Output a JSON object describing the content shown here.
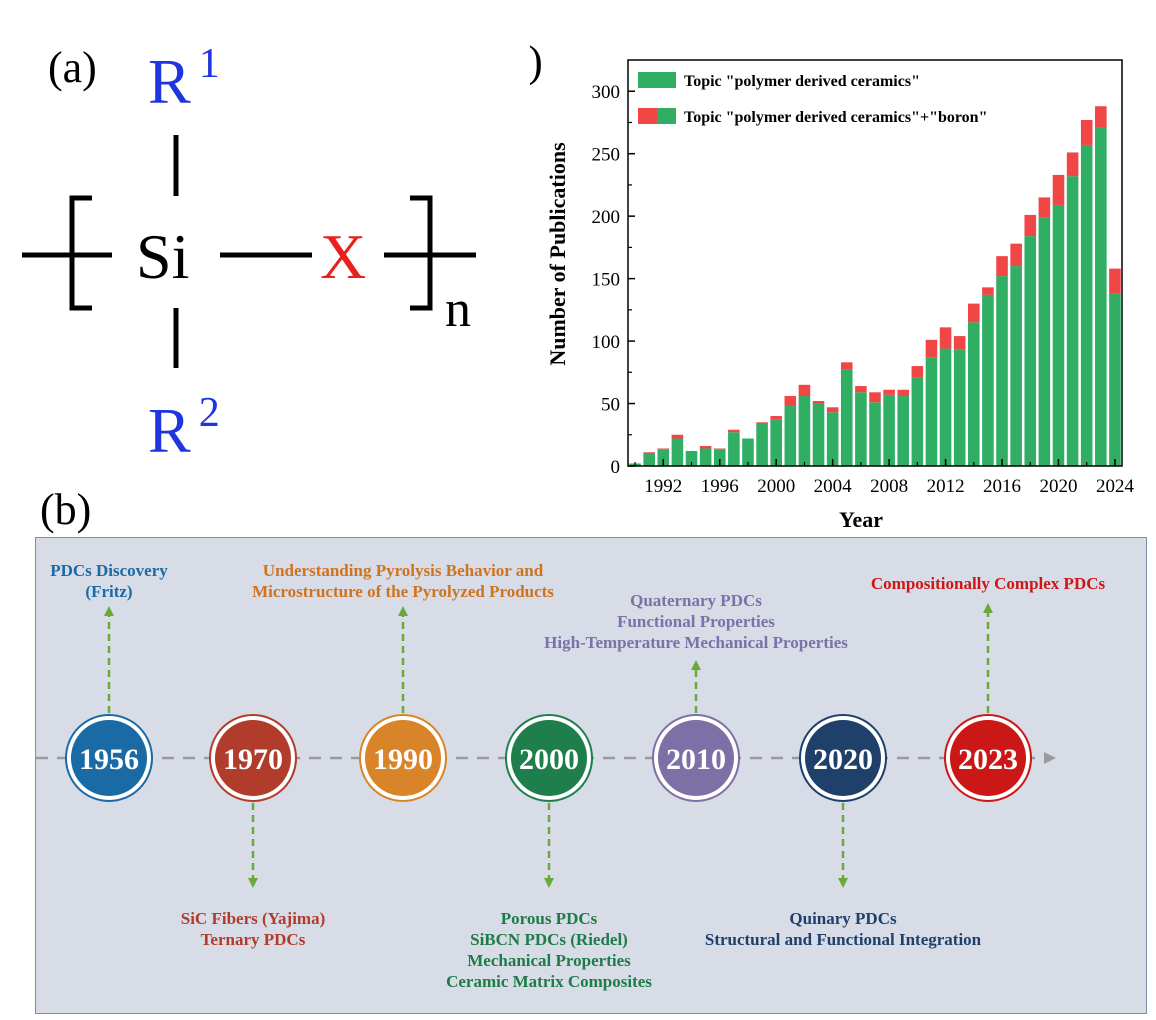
{
  "panel_a": {
    "label": "(a)",
    "r1_base": "R",
    "r1_sup": "1",
    "r2_base": "R",
    "r2_sup": "2",
    "si": "Si",
    "x": "X",
    "subscript": "n",
    "colors": {
      "r_group": "#1f35e0",
      "x_group": "#e8201e",
      "text": "#000000"
    }
  },
  "panel_b": {
    "label": "(b)",
    "milestones": [
      {
        "year": "1956",
        "color": "#1a6aa6",
        "text_color": "#1a6aa6",
        "direction": "up",
        "lines": [
          "PDCs Discovery",
          "(Fritz)"
        ]
      },
      {
        "year": "1970",
        "color": "#b23c2c",
        "text_color": "#b23c2c",
        "direction": "down",
        "lines": [
          "SiC Fibers (Yajima)",
          "Ternary PDCs"
        ]
      },
      {
        "year": "1990",
        "color": "#d98428",
        "text_color": "#d0731e",
        "direction": "up",
        "lines": [
          "Understanding Pyrolysis Behavior and",
          "Microstructure of the Pyrolyzed Products"
        ]
      },
      {
        "year": "2000",
        "color": "#1f7f4c",
        "text_color": "#1e7c48",
        "direction": "down",
        "lines": [
          "Porous PDCs",
          "SiBCN PDCs (Riedel)",
          "Mechanical Properties",
          "Ceramic Matrix Composites"
        ]
      },
      {
        "year": "2010",
        "color": "#7c70a6",
        "text_color": "#7a72a8",
        "direction": "up",
        "lines": [
          "Quaternary PDCs",
          "Functional Properties",
          "High-Temperature Mechanical Properties"
        ]
      },
      {
        "year": "2020",
        "color": "#1f406b",
        "text_color": "#1f406b",
        "direction": "down",
        "lines": [
          "Quinary PDCs",
          "Structural and Functional Integration"
        ]
      },
      {
        "year": "2023",
        "color": "#cc1717",
        "text_color": "#cc1717",
        "direction": "up",
        "lines": [
          "Compositionally Complex PDCs"
        ]
      }
    ],
    "colors": {
      "background": "#d7dce6",
      "arrow": "#6aaa3a",
      "axis": "#9a9a9a"
    }
  },
  "chart_data": {
    "type": "bar",
    "panel_label": "(c)",
    "stacked": true,
    "x": [
      1990,
      1991,
      1992,
      1993,
      1994,
      1995,
      1996,
      1997,
      1998,
      1999,
      2000,
      2001,
      2002,
      2003,
      2004,
      2005,
      2006,
      2007,
      2008,
      2009,
      2010,
      2011,
      2012,
      2013,
      2014,
      2015,
      2016,
      2017,
      2018,
      2019,
      2020,
      2021,
      2022,
      2023,
      2024
    ],
    "series": [
      {
        "name": "Topic \"polymer derived ceramics\"",
        "color": "#2fae64",
        "values": [
          2,
          10,
          13,
          22,
          12,
          14,
          13,
          27,
          22,
          34,
          37,
          48,
          56,
          50,
          43,
          77,
          59,
          51,
          57,
          56,
          71,
          87,
          94,
          93,
          115,
          137,
          152,
          160,
          184,
          199,
          209,
          232,
          257,
          271,
          138
        ]
      },
      {
        "name": "Topic \"polymer derived ceramics\"+\"boron\"",
        "color": "#f04646",
        "values": [
          0,
          1,
          1,
          3,
          0,
          2,
          1,
          2,
          0,
          1,
          3,
          8,
          9,
          2,
          4,
          6,
          5,
          8,
          4,
          5,
          9,
          14,
          17,
          11,
          15,
          6,
          16,
          18,
          17,
          16,
          24,
          19,
          20,
          17,
          20
        ]
      }
    ],
    "xlabel": "Year",
    "ylabel": "Number of Publications",
    "xticks": [
      1992,
      1996,
      2000,
      2004,
      2008,
      2012,
      2016,
      2020,
      2024
    ],
    "yticks": [
      0,
      50,
      100,
      150,
      200,
      250,
      300
    ],
    "ylim": [
      0,
      325
    ],
    "xlim": [
      1989.5,
      2024.5
    ],
    "legend": "top-left"
  }
}
